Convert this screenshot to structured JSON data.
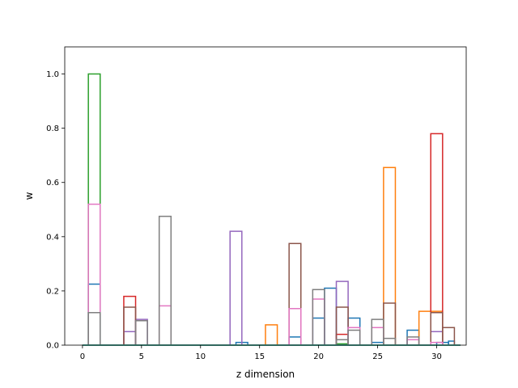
{
  "chart_data": {
    "type": "bar",
    "style": "step histogram (unfilled, overlaid series)",
    "title": "",
    "xlabel": "z dimension",
    "ylabel": "w",
    "xlim": [
      -1.5,
      32.5
    ],
    "ylim": [
      0,
      1.1
    ],
    "x_ticks": [
      0,
      5,
      10,
      15,
      20,
      25,
      30
    ],
    "x_tick_labels": [
      "0",
      "5",
      "10",
      "15",
      "20",
      "25",
      "30"
    ],
    "y_ticks": [
      0.0,
      0.2,
      0.4,
      0.6,
      0.8,
      1.0
    ],
    "y_tick_labels": [
      "0.0",
      "0.2",
      "0.4",
      "0.6",
      "0.8",
      "1.0"
    ],
    "grid": false,
    "legend": "none",
    "bin_edges": [
      0,
      1,
      2,
      3,
      4,
      5,
      6,
      7,
      8,
      9,
      10,
      11,
      12,
      13,
      14,
      15,
      16,
      17,
      18,
      19,
      20,
      21,
      22,
      23,
      24,
      25,
      26,
      27,
      28,
      29,
      30,
      31,
      32
    ],
    "series": [
      {
        "color": "#1f77b4",
        "bars": [
          [
            0.5,
            1.5,
            0.225
          ],
          [
            13,
            14,
            0.01
          ],
          [
            17.5,
            18.5,
            0.03
          ],
          [
            19.5,
            20.5,
            0.1
          ],
          [
            20.5,
            21.5,
            0.21
          ],
          [
            22.5,
            23.5,
            0.1
          ],
          [
            24.5,
            25.5,
            0.01
          ],
          [
            27.5,
            28.5,
            0.055
          ],
          [
            30,
            31,
            0.01
          ],
          [
            31,
            31.5,
            0.015
          ]
        ]
      },
      {
        "color": "#ff7f0e",
        "bars": [
          [
            15.5,
            16.5,
            0.075
          ],
          [
            25.5,
            26.5,
            0.655
          ],
          [
            28.5,
            30.5,
            0.125
          ]
        ]
      },
      {
        "color": "#2ca02c",
        "bars": [
          [
            0.5,
            1.5,
            1.0
          ],
          [
            21.5,
            22.5,
            0.005
          ]
        ]
      },
      {
        "color": "#d62728",
        "bars": [
          [
            3.5,
            4.5,
            0.18
          ],
          [
            21.5,
            22.5,
            0.04
          ],
          [
            29.5,
            30.5,
            0.78
          ]
        ]
      },
      {
        "color": "#9467bd",
        "bars": [
          [
            3.5,
            4.5,
            0.05
          ],
          [
            4.5,
            5.5,
            0.095
          ],
          [
            12.5,
            13.5,
            0.42
          ],
          [
            21.5,
            22.5,
            0.235
          ],
          [
            29.5,
            30.5,
            0.05
          ]
        ]
      },
      {
        "color": "#8c564b",
        "bars": [
          [
            3.5,
            4.5,
            0.14
          ],
          [
            17.5,
            18.5,
            0.375
          ],
          [
            21.5,
            22.5,
            0.14
          ],
          [
            25.5,
            26.5,
            0.155
          ],
          [
            29.5,
            30.5,
            0.12
          ],
          [
            30.5,
            31.5,
            0.065
          ]
        ]
      },
      {
        "color": "#e377c2",
        "bars": [
          [
            0.5,
            1.5,
            0.52
          ],
          [
            6.5,
            7.5,
            0.145
          ],
          [
            17.5,
            18.5,
            0.135
          ],
          [
            19.5,
            20.5,
            0.17
          ],
          [
            22.5,
            23.5,
            0.065
          ],
          [
            24.5,
            25.5,
            0.065
          ],
          [
            27.5,
            28.5,
            0.02
          ],
          [
            29.5,
            30.5,
            0.01
          ]
        ]
      },
      {
        "color": "#7f7f7f",
        "bars": [
          [
            0.5,
            1.5,
            0.12
          ],
          [
            4.5,
            5.5,
            0.09
          ],
          [
            6.5,
            7.5,
            0.475
          ],
          [
            19.5,
            20.5,
            0.205
          ],
          [
            21.5,
            22.5,
            0.02
          ],
          [
            22.5,
            23.5,
            0.055
          ],
          [
            24.5,
            25.5,
            0.095
          ],
          [
            25.5,
            26.5,
            0.025
          ],
          [
            27.5,
            28.5,
            0.03
          ]
        ]
      },
      {
        "color": "#bcbd22",
        "bars": []
      },
      {
        "color": "#17becf",
        "bars": []
      }
    ]
  }
}
